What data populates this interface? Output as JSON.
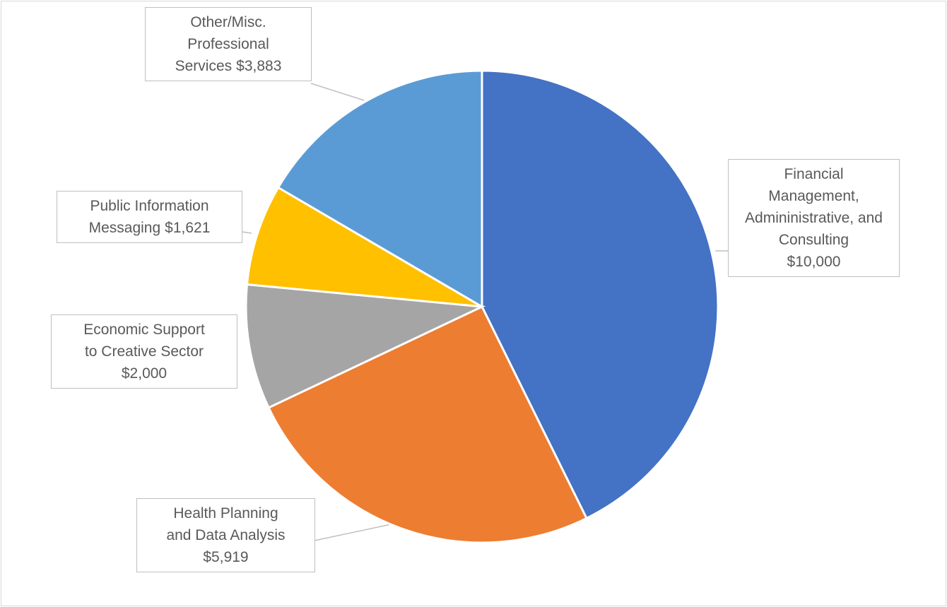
{
  "chart_data": {
    "type": "pie",
    "categories": [
      "Financial Management, Admininistrative, and Consulting",
      "Health Planning and Data Analysis",
      "Economic Support to Creative Sector",
      "Public Information Messaging",
      "Other/Misc. Professional Services"
    ],
    "values": [
      10000,
      5919,
      2000,
      1621,
      3883
    ],
    "value_labels": [
      "$10,000",
      "$5,919",
      "$2,000",
      "$1,621",
      "$3,883"
    ],
    "colors": [
      "#4472c4",
      "#ed7d31",
      "#a5a5a5",
      "#ffc000",
      "#5b9bd5"
    ]
  }
}
